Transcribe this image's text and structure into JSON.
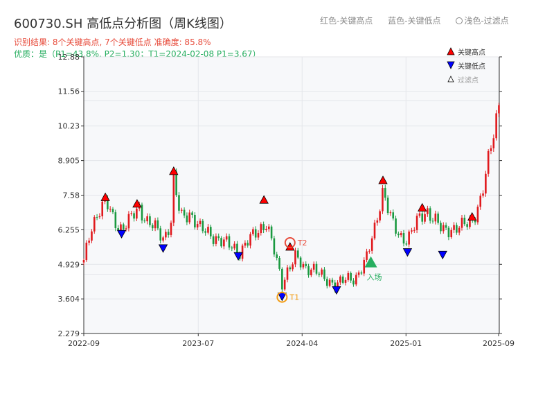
{
  "header": {
    "title": "600730.SH 高低点分析图（周K线图）",
    "legend_red": "红色-关键高点",
    "legend_blue": "蓝色-关键低点",
    "legend_light": "浅色-过滤点",
    "result_line": "识别结果: 8个关键高点, 7个关键低点  准确度: 85.8%",
    "quality_line": "优质：是（P1=43.8%, P2=1.30；T1=2024-02-08 P1=3.67）"
  },
  "legend": {
    "high": "关键高点",
    "low": "关键低点",
    "filtered": "过滤点"
  },
  "colors": {
    "up": "#e0191d",
    "down": "#1a9940",
    "high_marker": "#ff0000",
    "low_marker": "#0000ff",
    "t1": "#f39c12",
    "t2": "#e74c3c",
    "entry": "#27ae60",
    "plot_bg": "#f7f8fa"
  },
  "chart_data": {
    "type": "candlestick",
    "x_type": "date",
    "x_ticks": [
      "2022-09",
      "2023-07",
      "2024-04",
      "2025-01",
      "2025-09"
    ],
    "y_ticks": [
      2.279,
      3.604,
      4.929,
      6.255,
      7.58,
      8.905,
      10.23,
      11.56,
      12.88
    ],
    "ylim": [
      2.279,
      12.88
    ],
    "xlim": [
      "2022-09-01",
      "2025-09-05"
    ],
    "price_path": [
      [
        "2022-09-01",
        5.0
      ],
      [
        "2022-09-20",
        6.3
      ],
      [
        "2022-10-10",
        7.0
      ],
      [
        "2022-10-30",
        7.3
      ],
      [
        "2022-11-20",
        6.6
      ],
      [
        "2022-12-10",
        6.3
      ],
      [
        "2023-01-05",
        6.7
      ],
      [
        "2023-01-25",
        7.1
      ],
      [
        "2023-02-15",
        6.6
      ],
      [
        "2023-03-10",
        6.3
      ],
      [
        "2023-03-31",
        5.9
      ],
      [
        "2023-04-20",
        6.6
      ],
      [
        "2023-04-27",
        8.2
      ],
      [
        "2023-05-15",
        6.7
      ],
      [
        "2023-06-10",
        6.9
      ],
      [
        "2023-07-05",
        6.3
      ],
      [
        "2023-08-01",
        6.1
      ],
      [
        "2023-09-01",
        5.8
      ],
      [
        "2023-10-01",
        5.6
      ],
      [
        "2023-10-20",
        5.4
      ],
      [
        "2023-11-15",
        5.9
      ],
      [
        "2023-12-10",
        6.3
      ],
      [
        "2023-12-28",
        6.5
      ],
      [
        "2024-01-15",
        5.6
      ],
      [
        "2024-02-08",
        4.2
      ],
      [
        "2024-02-25",
        4.8
      ],
      [
        "2024-03-15",
        5.2
      ],
      [
        "2024-04-05",
        4.8
      ],
      [
        "2024-05-01",
        4.8
      ],
      [
        "2024-06-01",
        4.3
      ],
      [
        "2024-06-28",
        4.2
      ],
      [
        "2024-07-20",
        4.3
      ],
      [
        "2024-08-20",
        4.4
      ],
      [
        "2024-09-20",
        5.2
      ],
      [
        "2024-10-10",
        6.3
      ],
      [
        "2024-11-01",
        7.8
      ],
      [
        "2024-11-25",
        6.5
      ],
      [
        "2024-12-15",
        6.0
      ],
      [
        "2025-01-05",
        5.9
      ],
      [
        "2025-02-01",
        6.6
      ],
      [
        "2025-02-25",
        7.0
      ],
      [
        "2025-03-20",
        6.6
      ],
      [
        "2025-04-08",
        6.2
      ],
      [
        "2025-05-01",
        6.3
      ],
      [
        "2025-06-01",
        6.4
      ],
      [
        "2025-06-25",
        6.6
      ],
      [
        "2025-07-20",
        7.5
      ],
      [
        "2025-08-15",
        9.5
      ],
      [
        "2025-09-05",
        11.2
      ]
    ],
    "key_highs": [
      {
        "date": "2022-10-28",
        "price": 7.5
      },
      {
        "date": "2023-01-20",
        "price": 7.25
      },
      {
        "date": "2023-04-27",
        "price": 8.5
      },
      {
        "date": "2023-12-22",
        "price": 7.4
      },
      {
        "date": "2024-02-29",
        "price": 5.6
      },
      {
        "date": "2024-11-01",
        "price": 8.15
      },
      {
        "date": "2025-02-13",
        "price": 7.1
      },
      {
        "date": "2025-06-25",
        "price": 6.75
      }
    ],
    "key_lows": [
      {
        "date": "2022-12-10",
        "price": 6.1
      },
      {
        "date": "2023-03-30",
        "price": 5.55
      },
      {
        "date": "2023-10-15",
        "price": 5.25
      },
      {
        "date": "2024-02-08",
        "price": 3.7
      },
      {
        "date": "2024-07-01",
        "price": 3.95
      },
      {
        "date": "2025-01-05",
        "price": 5.4
      },
      {
        "date": "2025-04-08",
        "price": 5.3
      }
    ],
    "annotations": [
      {
        "label": "T1",
        "date": "2024-02-08",
        "price": 3.67
      },
      {
        "label": "T2",
        "date": "2024-02-29",
        "price": 5.76
      },
      {
        "label": "入场",
        "date": "2024-09-30",
        "price": 5.0
      }
    ]
  }
}
